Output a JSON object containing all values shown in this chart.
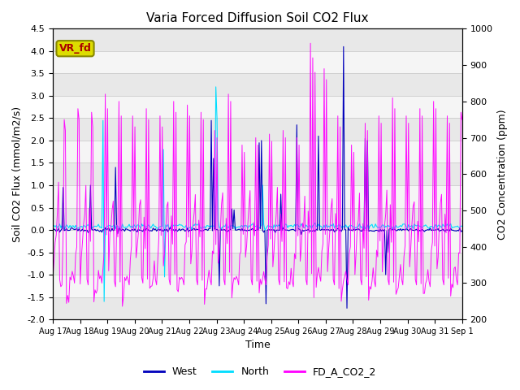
{
  "title": "Varia Forced Diffusion Soil CO2 Flux",
  "xlabel": "Time",
  "ylabel_left": "Soil CO2 Flux (mmol/m2/s)",
  "ylabel_right": "CO2 Concentration (ppm)",
  "ylim_left": [
    -2.0,
    4.5
  ],
  "ylim_right": [
    200,
    1000
  ],
  "xtick_labels": [
    "Aug 17",
    "Aug 18",
    "Aug 19",
    "Aug 20",
    "Aug 21",
    "Aug 22",
    "Aug 23",
    "Aug 24",
    "Aug 25",
    "Aug 26",
    "Aug 27",
    "Aug 28",
    "Aug 29",
    "Aug 30",
    "Aug 31",
    "Sep 1"
  ],
  "west_color": "#0000bb",
  "north_color": "#00ddff",
  "co2_color": "#ff00ff",
  "legend_box_facecolor": "#dddd00",
  "legend_box_edgecolor": "#888800",
  "legend_box_text": "VR_fd",
  "legend_box_text_color": "#aa0000",
  "background_color": "#ffffff",
  "plot_bg_light": "#f0f0f0",
  "plot_bg_dark": "#e0e0e0",
  "grid_color": "#cccccc",
  "title_fontsize": 11,
  "label_fontsize": 9,
  "tick_fontsize": 8
}
